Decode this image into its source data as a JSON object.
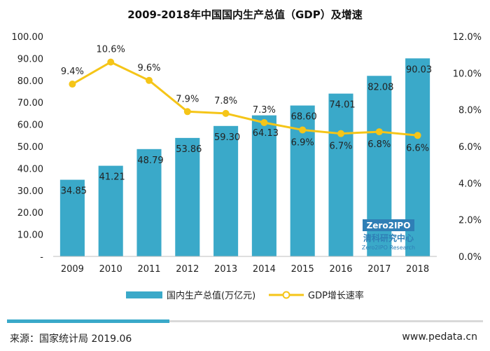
{
  "chart_data": {
    "type": "bar",
    "title": "2009-2018年中国国内生产总值（GDP）及增速",
    "categories": [
      "2009",
      "2010",
      "2011",
      "2012",
      "2013",
      "2014",
      "2015",
      "2016",
      "2017",
      "2018"
    ],
    "series": [
      {
        "name": "国内生产总值(万亿元)",
        "type": "bar",
        "axis": "left",
        "values": [
          34.85,
          41.21,
          48.79,
          53.86,
          59.3,
          64.13,
          68.6,
          74.01,
          82.08,
          90.03
        ],
        "labels": [
          "34.85",
          "41.21",
          "48.79",
          "53.86",
          "59.30",
          "64.13",
          "68.60",
          "74.01",
          "82.08",
          "90.03"
        ]
      },
      {
        "name": "GDP增长速率",
        "type": "line",
        "axis": "right",
        "values": [
          9.4,
          10.6,
          9.6,
          7.9,
          7.8,
          7.3,
          6.9,
          6.7,
          6.8,
          6.6
        ],
        "labels": [
          "9.4%",
          "10.6%",
          "9.6%",
          "7.9%",
          "7.8%",
          "7.3%",
          "6.9%",
          "6.7%",
          "6.8%",
          "6.6%"
        ]
      }
    ],
    "ylim": [
      0,
      100
    ],
    "y2lim": [
      0,
      12
    ],
    "y_ticks": [
      "-",
      "10.00",
      "20.00",
      "30.00",
      "40.00",
      "50.00",
      "60.00",
      "70.00",
      "80.00",
      "90.00",
      "100.00"
    ],
    "y2_ticks": [
      "0.0%",
      "2.0%",
      "4.0%",
      "6.0%",
      "8.0%",
      "10.0%",
      "12.0%"
    ],
    "grid": false,
    "legend": "bottom",
    "colors": {
      "bar": "#3aa9c9",
      "line": "#f5c518",
      "marker_fill": "#ffffff"
    }
  },
  "watermark": {
    "logo_text": "Zero2IPO",
    "cn_text": "清科研究中心",
    "en_text": "Zero2IPO Research"
  },
  "footer": {
    "source": "来源：国家统计局 2019.06",
    "site": "www.pedata.cn"
  }
}
